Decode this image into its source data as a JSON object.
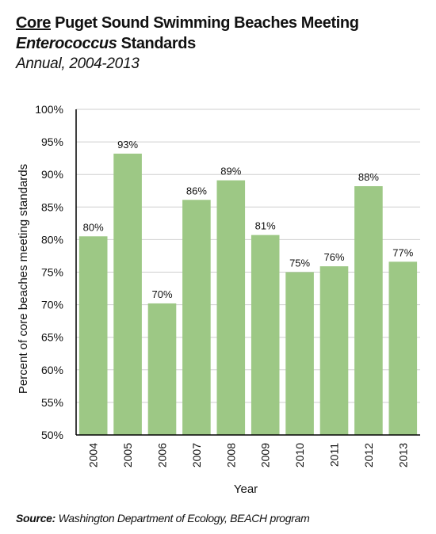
{
  "title": {
    "part1_underlined": "Core",
    "part1_rest": " Puget Sound Swimming Beaches Meeting",
    "part2_italic": "Enterococcus",
    "part2_rest": " Standards",
    "subtitle": "Annual, 2004-2013"
  },
  "source": {
    "label": "Source:",
    "text": " Washington Department of Ecology, BEACH program"
  },
  "colors": {
    "bar": "#9dc885",
    "grid": "#cfcfcf",
    "axis": "#000000"
  },
  "chart_data": {
    "type": "bar",
    "categories": [
      "2004",
      "2005",
      "2006",
      "2007",
      "2008",
      "2009",
      "2010",
      "2011",
      "2012",
      "2013"
    ],
    "values": [
      80.5,
      93.2,
      70.2,
      86.1,
      89.1,
      80.7,
      75.0,
      75.9,
      88.2,
      76.6
    ],
    "data_labels": [
      "80%",
      "93%",
      "70%",
      "86%",
      "89%",
      "81%",
      "75%",
      "76%",
      "88%",
      "77%"
    ],
    "ylim": [
      50,
      100
    ],
    "yticks": [
      50,
      55,
      60,
      65,
      70,
      75,
      80,
      85,
      90,
      95,
      100
    ],
    "ytick_labels": [
      "50%",
      "55%",
      "60%",
      "65%",
      "70%",
      "75%",
      "80%",
      "85%",
      "90%",
      "95%",
      "100%"
    ],
    "xlabel": "Year",
    "ylabel": "Percent of core beaches meeting standards",
    "grid": true,
    "legend": "none"
  }
}
